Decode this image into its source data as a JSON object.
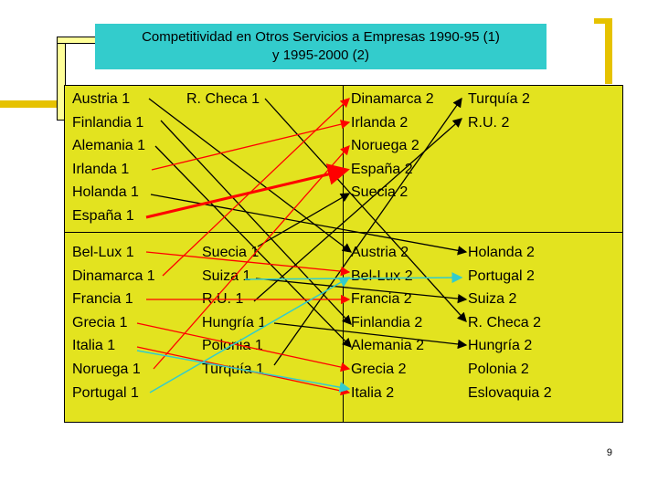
{
  "title": {
    "line1": "Competitividad en Otros Servicios a Empresas 1990-95 (1)",
    "line2": "y 1995-2000 (2)"
  },
  "top_left": [
    "Austria 1",
    "Finlandia 1",
    "Alemania 1",
    "Irlanda 1",
    "Holanda 1",
    "España 1"
  ],
  "top_mid": [
    "R. Checa 1"
  ],
  "top_right": [
    "Dinamarca 2",
    "Irlanda 2",
    "Noruega 2",
    "España 2",
    "Suecia 2"
  ],
  "top_far": [
    "Turquía 2",
    "R.U. 2"
  ],
  "bottom_left": [
    "Bel-Lux 1",
    "Dinamarca 1",
    "Francia 1",
    "Grecia 1",
    "Italia 1",
    "Noruega 1",
    "Portugal 1"
  ],
  "bottom_mid": [
    "Suecia 1",
    "Suiza 1",
    "R.U. 1",
    "Hungría 1",
    "Polonia 1",
    "Turquía 1"
  ],
  "bottom_right": [
    "Austria 2",
    "Bel-Lux 2",
    "Francia 2",
    "Finlandia 2",
    "Alemania 2",
    "Grecia 2",
    "Italia 2"
  ],
  "bottom_far": [
    "Holanda 2",
    "Portugal 2",
    "Suiza 2",
    "R. Checa 2",
    "Hungría 2",
    "Polonia 2",
    "Eslovaquia 2"
  ],
  "page_number": "9",
  "colors": {
    "panel": "#e3e31f",
    "title_bg": "#33cccc",
    "arrow_black": "#000000",
    "arrow_red": "#ff0000",
    "arrow_cyan": "#33cccc"
  }
}
